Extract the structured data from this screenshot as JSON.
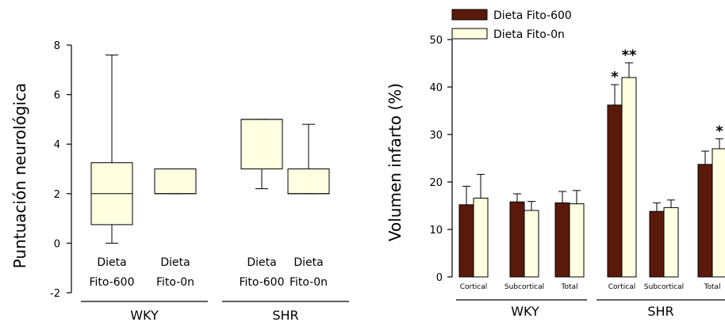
{
  "colors": {
    "dark": "#5a1a0b",
    "light": "#ffffe1",
    "stroke": "#000000"
  },
  "chart_data": [
    {
      "type": "box",
      "ylabel": "Puntuación neurológica",
      "ylim": [
        -2,
        8
      ],
      "yticks": [
        -2,
        0,
        2,
        4,
        6,
        8
      ],
      "groups": [
        "WKY",
        "SHR"
      ],
      "boxes": [
        {
          "label_line1": "Dieta",
          "label_line2": "Fito-600",
          "group": "WKY",
          "min": 0,
          "q1": 0.75,
          "median": 2,
          "q3": 3.25,
          "max": 7.6
        },
        {
          "label_line1": "Dieta",
          "label_line2": "Fito-0n",
          "group": "WKY",
          "min": 2,
          "q1": 2,
          "median": 2,
          "q3": 3,
          "max": 3
        },
        {
          "label_line1": "Dieta",
          "label_line2": "Fito-600",
          "group": "SHR",
          "min": 2.2,
          "q1": 3,
          "median": 5,
          "q3": 5,
          "max": 5
        },
        {
          "label_line1": "Dieta",
          "label_line2": "Fito-0n",
          "group": "SHR",
          "min": 2,
          "q1": 2,
          "median": 2,
          "q3": 3,
          "max": 4.8
        }
      ]
    },
    {
      "type": "bar",
      "ylabel": "Volumen infarto (%)",
      "ylim": [
        0,
        50
      ],
      "yticks": [
        0,
        10,
        20,
        30,
        40,
        50
      ],
      "groups": [
        "WKY",
        "SHR"
      ],
      "categories": [
        "Cortical",
        "Subcortical",
        "Total",
        "Cortical",
        "Subcortical",
        "Total"
      ],
      "series": [
        {
          "name": "Dieta Fito-600",
          "values": [
            15.2,
            15.8,
            15.6,
            36.2,
            13.8,
            23.7
          ],
          "errors": [
            3.9,
            1.7,
            2.4,
            4.3,
            1.8,
            2.8
          ],
          "sig": [
            "",
            "",
            "",
            "*",
            "",
            ""
          ]
        },
        {
          "name": "Dieta Fito-0n",
          "values": [
            16.6,
            14.0,
            15.4,
            42.0,
            14.6,
            27.0
          ],
          "errors": [
            5.0,
            1.9,
            2.8,
            3.1,
            1.6,
            2.1
          ],
          "sig": [
            "",
            "",
            "",
            "**",
            "",
            "*"
          ]
        }
      ]
    }
  ]
}
